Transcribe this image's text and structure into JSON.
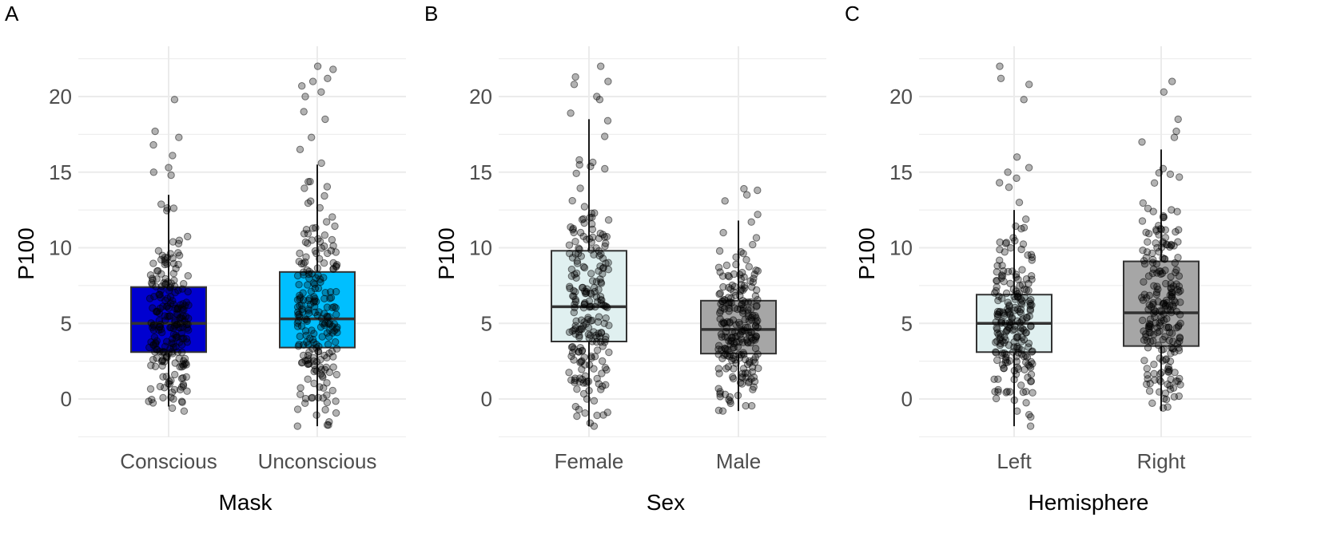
{
  "figure_labels": [
    "A",
    "B",
    "C"
  ],
  "colors": {
    "Conscious": "#0000d0",
    "Unconscious": "#00bfff",
    "Female": "#e0f0f0",
    "Male": "#a6a6a6",
    "Left": "#e0f0f0",
    "Right": "#a6a6a6",
    "grid": "#ebebeb",
    "box_border": "#333333",
    "point": "#000000"
  },
  "chart_data": [
    {
      "type": "box",
      "panel": "A",
      "title": "",
      "xlabel": "Mask",
      "ylabel": "P100",
      "ylim": [
        -2.5,
        23.5
      ],
      "yticks": [
        0,
        5,
        10,
        15,
        20
      ],
      "categories": [
        "Conscious",
        "Unconscious"
      ],
      "boxes": [
        {
          "category": "Conscious",
          "min": -0.5,
          "q1": 3.1,
          "median": 5.0,
          "q3": 7.4,
          "max": 13.5,
          "outliers": [
            14.8,
            15.0,
            15.3,
            16.1,
            16.8,
            17.3,
            17.7,
            19.8,
            -0.8,
            -0.6
          ]
        },
        {
          "category": "Unconscious",
          "min": -1.8,
          "q1": 3.4,
          "median": 5.3,
          "q3": 8.4,
          "max": 15.5,
          "outliers": [
            15.6,
            16.5,
            17.3,
            18.5,
            19.0,
            20.0,
            20.3,
            20.7,
            21.0,
            21.2,
            21.8,
            22.0,
            -1.8
          ]
        }
      ],
      "n_points": 230
    },
    {
      "type": "box",
      "panel": "B",
      "title": "",
      "xlabel": "Sex",
      "ylabel": "P100",
      "ylim": [
        -2.5,
        23.5
      ],
      "yticks": [
        0,
        5,
        10,
        15,
        20
      ],
      "categories": [
        "Female",
        "Male"
      ],
      "boxes": [
        {
          "category": "Female",
          "min": -1.8,
          "q1": 3.8,
          "median": 6.1,
          "q3": 9.8,
          "max": 18.5,
          "outliers": [
            18.9,
            19.8,
            20.0,
            20.8,
            21.0,
            21.3,
            22.0,
            -1.8
          ]
        },
        {
          "category": "Male",
          "min": -0.8,
          "q1": 3.0,
          "median": 4.6,
          "q3": 6.5,
          "max": 11.8,
          "outliers": [
            12.2,
            13.1,
            13.5,
            13.8,
            13.9
          ]
        }
      ],
      "n_points": 230
    },
    {
      "type": "box",
      "panel": "C",
      "title": "",
      "xlabel": "Hemisphere",
      "ylabel": "P100",
      "ylim": [
        -2.5,
        23.5
      ],
      "yticks": [
        0,
        5,
        10,
        15,
        20
      ],
      "categories": [
        "Left",
        "Right"
      ],
      "boxes": [
        {
          "category": "Left",
          "min": -1.8,
          "q1": 3.1,
          "median": 5.0,
          "q3": 6.9,
          "max": 12.5,
          "outliers": [
            13.0,
            14.0,
            14.3,
            14.6,
            15.0,
            15.3,
            16.0,
            19.8,
            20.8,
            21.2,
            22.0,
            -1.8
          ]
        },
        {
          "category": "Right",
          "min": -0.8,
          "q1": 3.5,
          "median": 5.7,
          "q3": 9.1,
          "max": 16.5,
          "outliers": [
            17.0,
            17.3,
            17.7,
            18.5,
            20.3,
            21.0
          ]
        }
      ],
      "n_points": 230
    }
  ]
}
